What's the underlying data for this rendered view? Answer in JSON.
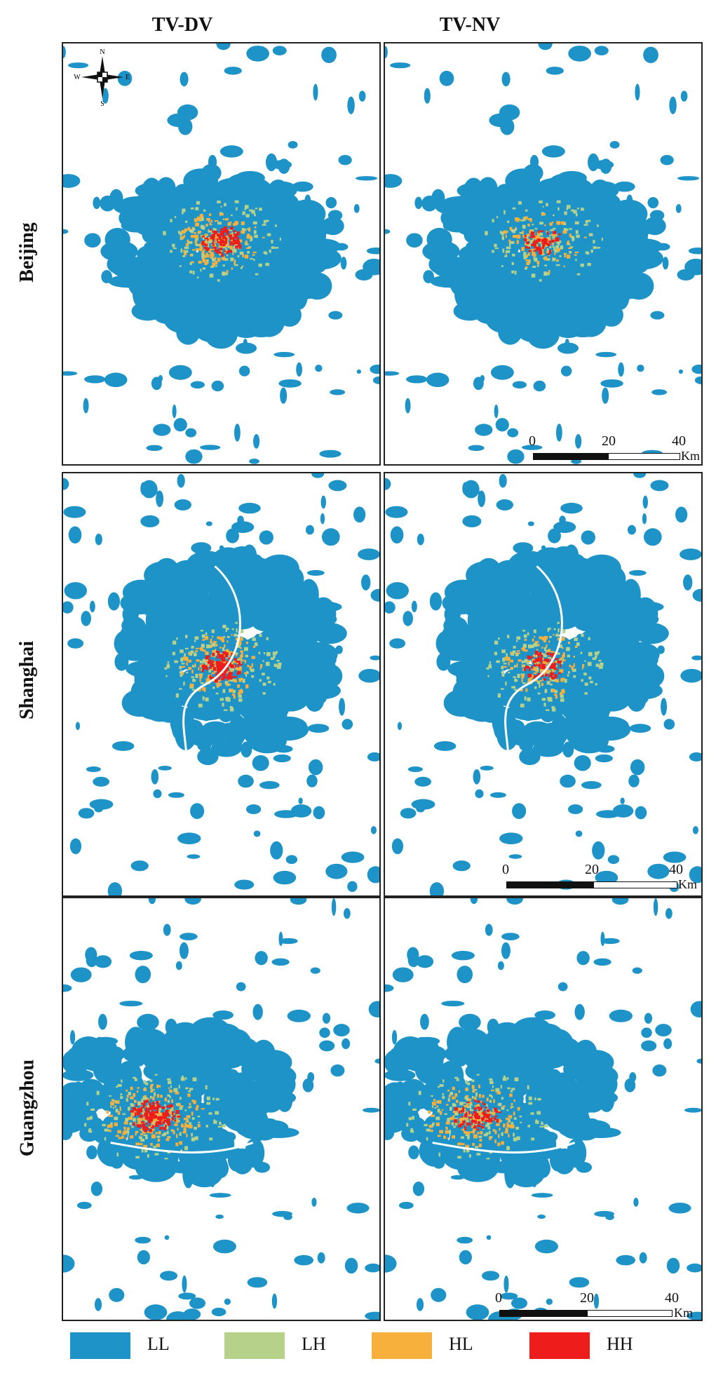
{
  "columns": [
    "TV-DV",
    "TV-NV"
  ],
  "rows": [
    "Beijing",
    "Shanghai",
    "Guangzhou"
  ],
  "compass": {
    "n": "N",
    "s": "S",
    "e": "E",
    "w": "W"
  },
  "scale": {
    "ticks": [
      "0",
      "20",
      "40"
    ],
    "unit": "Km"
  },
  "legend": [
    {
      "label": "LL",
      "color": "#1e93c8"
    },
    {
      "label": "LH",
      "color": "#b5d18a"
    },
    {
      "label": "HL",
      "color": "#f8b03c"
    },
    {
      "label": "HH",
      "color": "#ef1c1c"
    }
  ]
}
